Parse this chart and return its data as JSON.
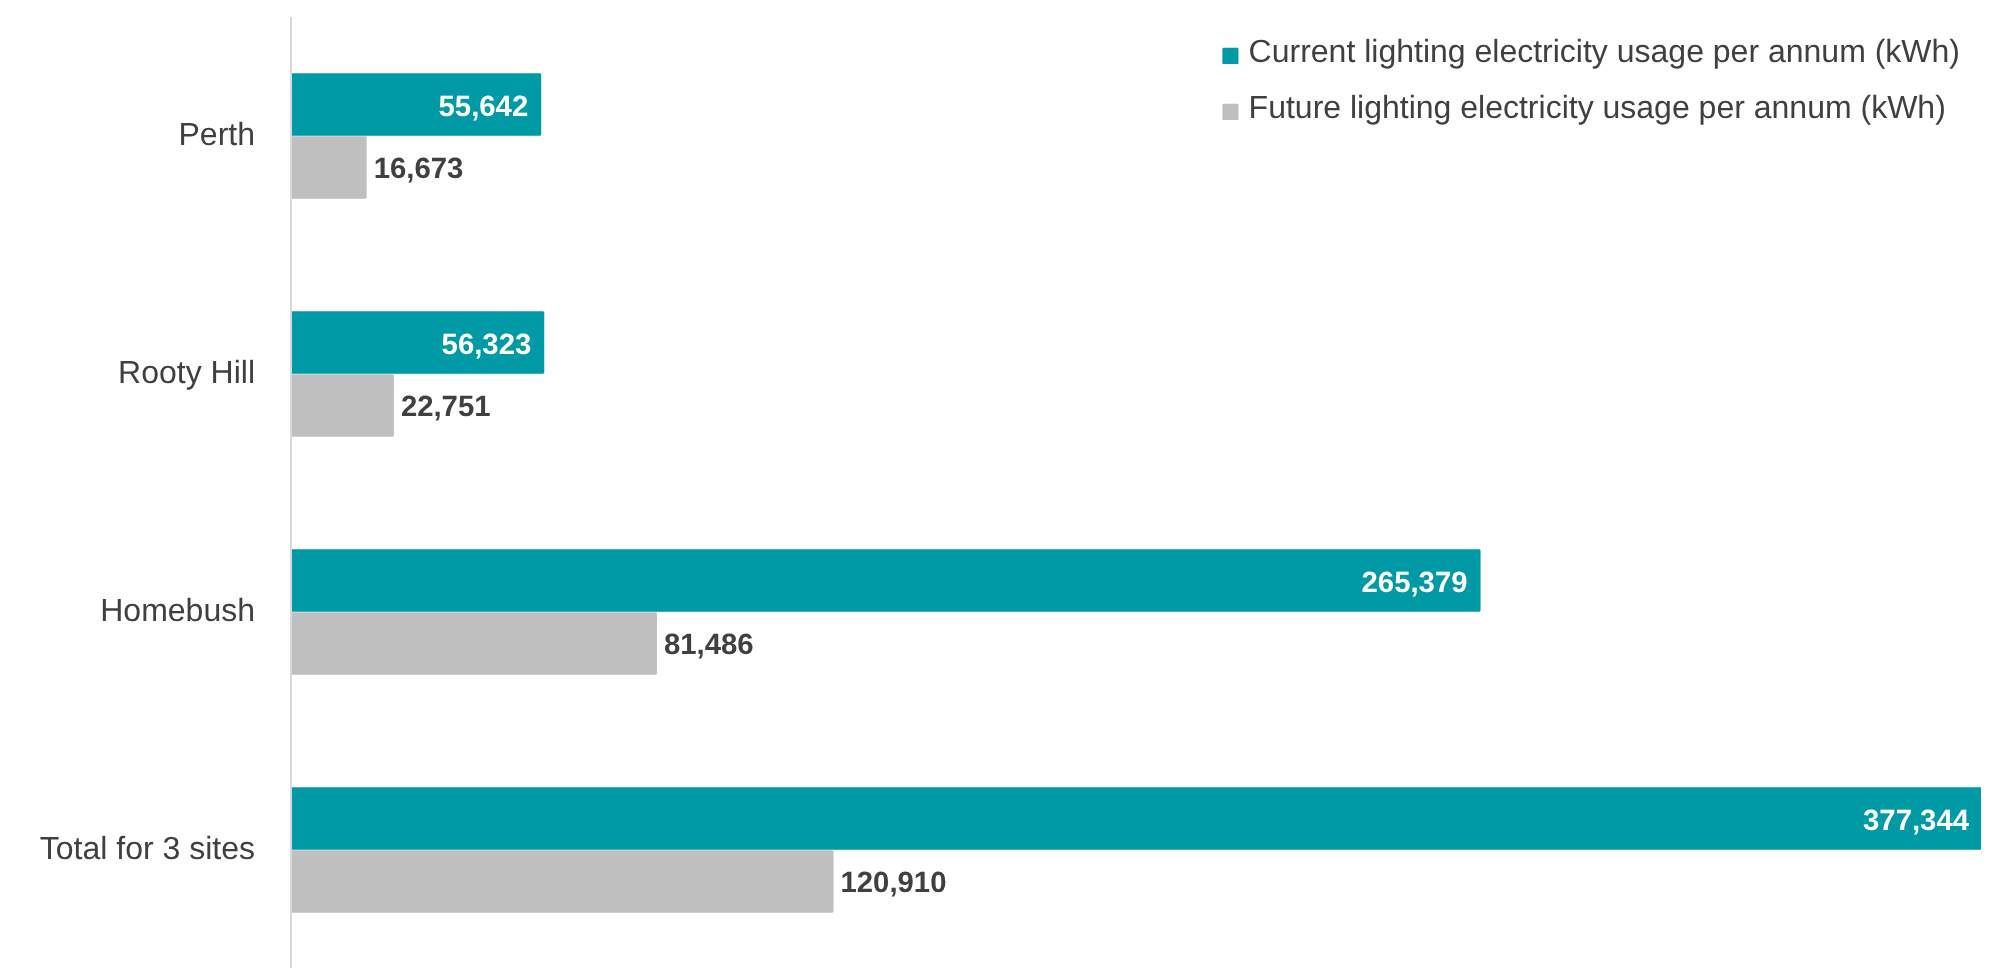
{
  "chart_data": {
    "type": "bar",
    "orientation": "horizontal",
    "categories": [
      "Perth",
      "Rooty Hill",
      "Homebush",
      "Total for 3 sites"
    ],
    "series": [
      {
        "name": "Current lighting electricity usage per annum (kWh)",
        "color": "#009aa6",
        "values": [
          55642,
          56323,
          265379,
          377344
        ],
        "value_labels": [
          "55,642",
          "56,323",
          "265,379",
          "377,344"
        ]
      },
      {
        "name": "Future lighting electricity usage per annum (kWh)",
        "color": "#bfbfbf",
        "values": [
          16673,
          22751,
          81486,
          120910
        ],
        "value_labels": [
          "16,673",
          "22,751",
          "81,486",
          "120,910"
        ]
      }
    ],
    "legend": "top right",
    "grid": false,
    "tick_labels": "y"
  }
}
